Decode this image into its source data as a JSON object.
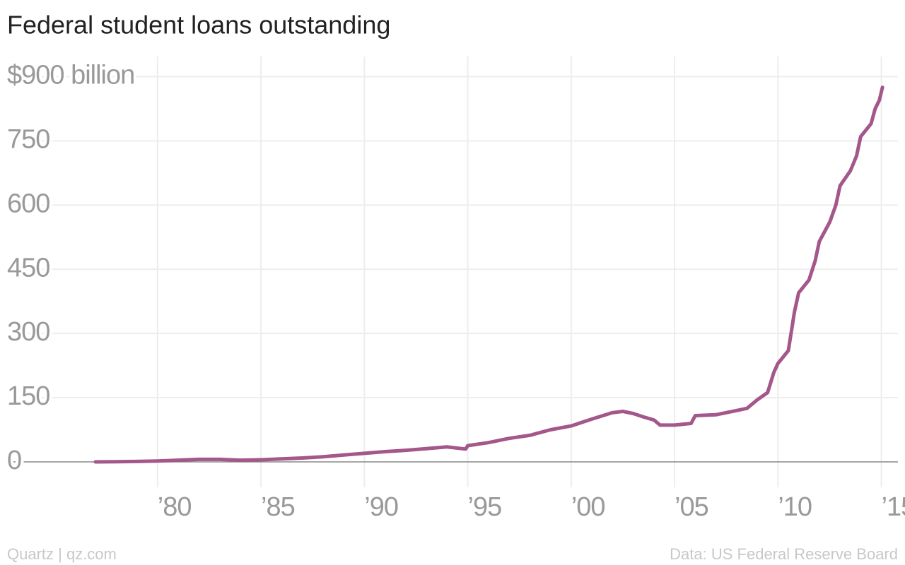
{
  "chart_data": {
    "type": "line",
    "title": "Federal student loans outstanding",
    "credit": "Quartz | qz.com",
    "source": "Data: US Federal Reserve Board",
    "x": [
      1977,
      1978,
      1979,
      1980,
      1981,
      1982,
      1983,
      1984,
      1985,
      1986,
      1987,
      1988,
      1989,
      1990,
      1991,
      1992,
      1993,
      1994,
      1994.9,
      1995,
      1996,
      1997,
      1998,
      1999,
      2000,
      2001,
      2002,
      2002.5,
      2003,
      2003.5,
      2004,
      2004.3,
      2005,
      2005.8,
      2006,
      2007,
      2008,
      2008.5,
      2009,
      2009.5,
      2009.8,
      2010,
      2010.5,
      2010.8,
      2011,
      2011.5,
      2011.8,
      2012,
      2012.5,
      2012.8,
      2013,
      2013.5,
      2013.8,
      2014,
      2014.5,
      2014.7,
      2014.9,
      2015.05
    ],
    "series": [
      {
        "name": "Federal student loans outstanding",
        "color": "#a3578a",
        "values": [
          0,
          0.5,
          1,
          2,
          4,
          6,
          6,
          4,
          5,
          7,
          9,
          12,
          16,
          20,
          24,
          27,
          31,
          35,
          30,
          38,
          45,
          55,
          62,
          75,
          84,
          100,
          115,
          118,
          113,
          105,
          98,
          86,
          86,
          90,
          108,
          110,
          120,
          125,
          145,
          162,
          209,
          230,
          260,
          351,
          395,
          425,
          470,
          515,
          560,
          600,
          645,
          680,
          715,
          760,
          790,
          825,
          845,
          875
        ]
      }
    ],
    "xlim": [
      1973,
      2015.8
    ],
    "ylim": [
      0,
      940
    ],
    "xticks": [
      {
        "value": 1980,
        "label": "’80"
      },
      {
        "value": 1985,
        "label": "’85"
      },
      {
        "value": 1990,
        "label": "’90"
      },
      {
        "value": 1995,
        "label": "’95"
      },
      {
        "value": 2000,
        "label": "’00"
      },
      {
        "value": 2005,
        "label": "’05"
      },
      {
        "value": 2010,
        "label": "’10"
      },
      {
        "value": 2015,
        "label": "’15"
      }
    ],
    "yticks": [
      0,
      150,
      300,
      450,
      600,
      750,
      {
        "value": 900,
        "label": "$900 billion"
      }
    ],
    "grid": true
  }
}
